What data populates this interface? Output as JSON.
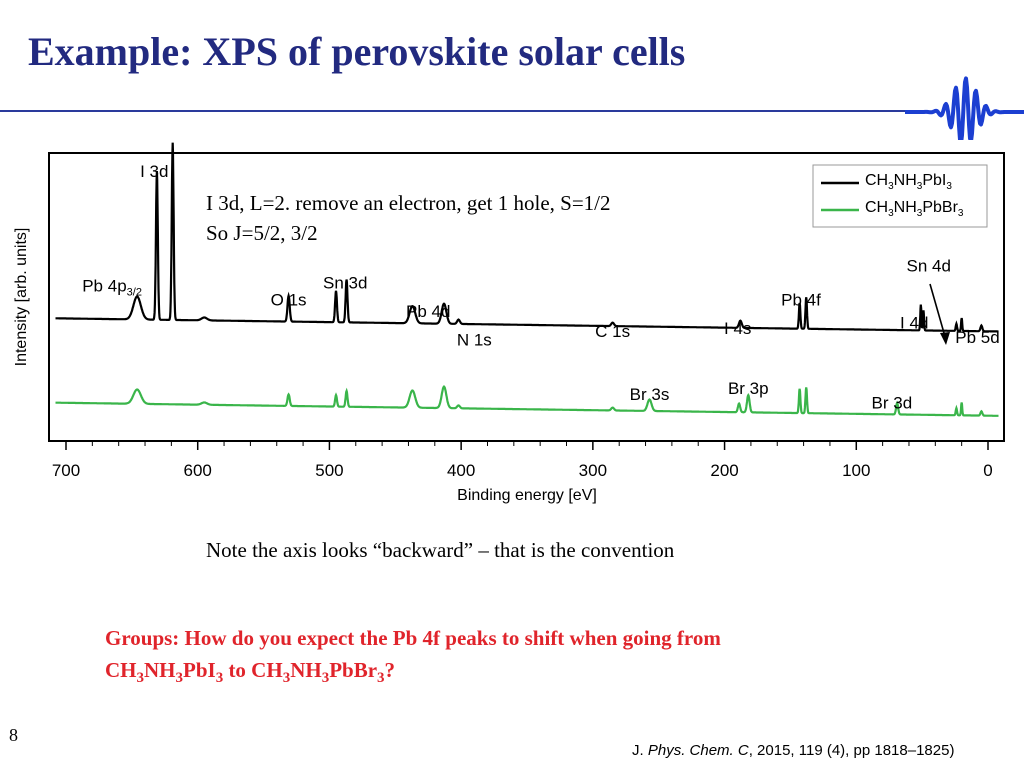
{
  "slide": {
    "title": "Example: XPS of perovskite solar cells",
    "page_number": "8",
    "annotation_line1": "I 3d, L=2.  remove an electron, get 1 hole, S=1/2",
    "annotation_line2": "So J=5/2, 3/2",
    "note": "Note the axis looks “backward” – that is the convention",
    "question": {
      "line1": "Groups: How do you expect the Pb 4f peaks to shift when going from",
      "line2_parts": [
        "CH",
        "3",
        "NH",
        "3",
        "PbI",
        "3",
        " to CH",
        "3",
        "NH",
        "3",
        "PbBr",
        "3",
        "?"
      ]
    },
    "citation": {
      "journal_prefix": "J. ",
      "journal_italic": "Phys. Chem. C",
      "rest": ", 2015, 119 (4), pp 1818–1825)"
    },
    "colors": {
      "title": "#222a80",
      "rule": "#2a3a9c",
      "question": "#e0242b",
      "series_pbi3": "#000000",
      "series_pbbr3": "#3ab54a",
      "logo": "#1c3fd1"
    }
  },
  "chart_data": {
    "type": "line",
    "xlabel": "Binding energy [eV]",
    "ylabel": "Intensity [arb. units]",
    "xlim": [
      700,
      0
    ],
    "x_reversed": true,
    "grid": false,
    "legend_position": "top-right",
    "x_ticks": [
      700,
      600,
      500,
      400,
      300,
      200,
      100,
      0
    ],
    "series": [
      {
        "name": "CH3NH3PbI3",
        "name_parts": [
          "CH",
          "3",
          "NH",
          "3",
          "PbI",
          "3"
        ],
        "color": "#000000",
        "baseline": 0.38,
        "peaks": [
          {
            "x": 646,
            "h": 0.08,
            "w": 4
          },
          {
            "x": 631,
            "h": 0.52,
            "w": 1.0
          },
          {
            "x": 619,
            "h": 0.62,
            "w": 1.0
          },
          {
            "x": 595,
            "h": 0.01,
            "w": 3
          },
          {
            "x": 531,
            "h": 0.09,
            "w": 1.2
          },
          {
            "x": 495,
            "h": 0.11,
            "w": 1.0
          },
          {
            "x": 487,
            "h": 0.15,
            "w": 1.0
          },
          {
            "x": 437,
            "h": 0.06,
            "w": 3
          },
          {
            "x": 413,
            "h": 0.07,
            "w": 2.5
          },
          {
            "x": 402,
            "h": 0.015,
            "w": 1.5
          },
          {
            "x": 285,
            "h": 0.012,
            "w": 1.5
          },
          {
            "x": 188,
            "h": 0.025,
            "w": 1.5
          },
          {
            "x": 143,
            "h": 0.09,
            "w": 0.8
          },
          {
            "x": 138,
            "h": 0.11,
            "w": 0.8
          },
          {
            "x": 51,
            "h": 0.09,
            "w": 0.6
          },
          {
            "x": 49,
            "h": 0.07,
            "w": 0.6
          },
          {
            "x": 24,
            "h": 0.025,
            "w": 0.7
          },
          {
            "x": 20,
            "h": 0.045,
            "w": 0.6
          },
          {
            "x": 5,
            "h": 0.02,
            "w": 1
          }
        ]
      },
      {
        "name": "CH3NH3PbBr3",
        "name_parts": [
          "CH",
          "3",
          "NH",
          "3",
          "PbBr",
          "3"
        ],
        "color": "#3ab54a",
        "baseline": 0.085,
        "peaks": [
          {
            "x": 646,
            "h": 0.05,
            "w": 4
          },
          {
            "x": 595,
            "h": 0.008,
            "w": 3
          },
          {
            "x": 531,
            "h": 0.04,
            "w": 1.2
          },
          {
            "x": 495,
            "h": 0.04,
            "w": 1.0
          },
          {
            "x": 487,
            "h": 0.055,
            "w": 1.0
          },
          {
            "x": 437,
            "h": 0.06,
            "w": 3
          },
          {
            "x": 413,
            "h": 0.075,
            "w": 2.5
          },
          {
            "x": 402,
            "h": 0.01,
            "w": 1.5
          },
          {
            "x": 285,
            "h": 0.01,
            "w": 1.5
          },
          {
            "x": 257,
            "h": 0.04,
            "w": 2.2
          },
          {
            "x": 189,
            "h": 0.03,
            "w": 1.2
          },
          {
            "x": 182,
            "h": 0.06,
            "w": 1.4
          },
          {
            "x": 143,
            "h": 0.085,
            "w": 0.8
          },
          {
            "x": 138,
            "h": 0.09,
            "w": 0.8
          },
          {
            "x": 69,
            "h": 0.04,
            "w": 1.1
          },
          {
            "x": 24,
            "h": 0.025,
            "w": 0.7
          },
          {
            "x": 20,
            "h": 0.045,
            "w": 0.6
          },
          {
            "x": 5,
            "h": 0.015,
            "w": 1
          }
        ]
      }
    ],
    "peak_labels": [
      {
        "text": "I 3d",
        "x": 633,
        "y": 0.92
      },
      {
        "text": "Pb 4p",
        "sub": "3/2",
        "x": 665,
        "y": 0.52
      },
      {
        "text": "O 1s",
        "x": 531,
        "y": 0.47
      },
      {
        "text": "Sn 3d",
        "x": 488,
        "y": 0.53
      },
      {
        "text": "Pb 4d",
        "x": 425,
        "y": 0.43
      },
      {
        "text": "N 1s",
        "x": 390,
        "y": 0.33
      },
      {
        "text": "C 1s",
        "x": 285,
        "y": 0.36
      },
      {
        "text": "I 4s",
        "x": 190,
        "y": 0.37
      },
      {
        "text": "Pb 4f",
        "x": 142,
        "y": 0.47
      },
      {
        "text": "Sn 4d",
        "x": 45,
        "y": 0.59
      },
      {
        "text": "I 4d",
        "x": 56,
        "y": 0.39
      },
      {
        "text": "Pb 5d",
        "x": 8,
        "y": 0.34
      },
      {
        "text": "Br 3s",
        "x": 257,
        "y": 0.14
      },
      {
        "text": "Br 3p",
        "x": 182,
        "y": 0.16
      },
      {
        "text": "Br 3d",
        "x": 73,
        "y": 0.11
      }
    ]
  }
}
